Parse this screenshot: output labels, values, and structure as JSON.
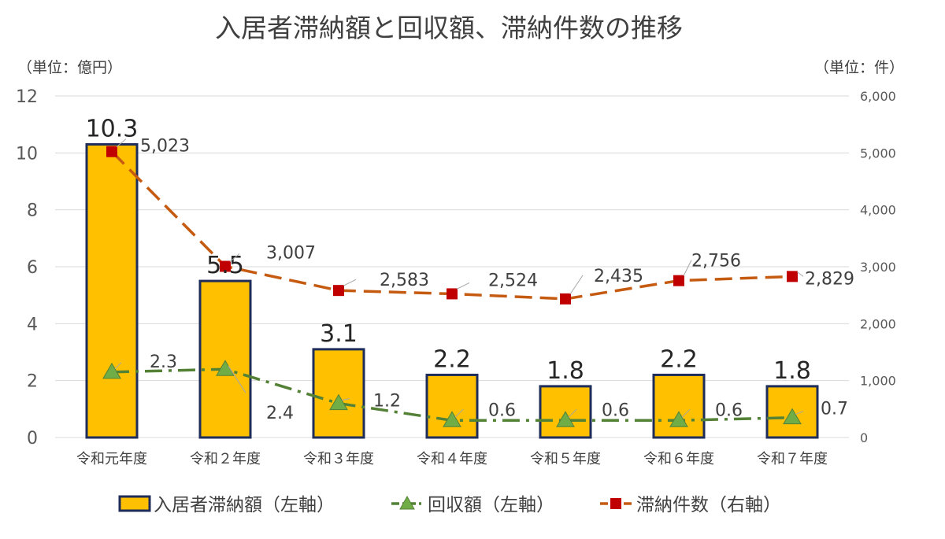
{
  "chart_data": {
    "type": "bar",
    "title": "入居者滞納額と回収額、滞納件数の推移",
    "ylabel_left": "（単位：億円）",
    "ylabel_right": "（単位：件）",
    "categories": [
      "令和元年度",
      "令和２年度",
      "令和３年度",
      "令和４年度",
      "令和５年度",
      "令和６年度",
      "令和７年度"
    ],
    "left_axis": {
      "min": 0,
      "max": 12,
      "ticks": [
        "0",
        "2",
        "4",
        "6",
        "8",
        "10",
        "12"
      ]
    },
    "right_axis": {
      "min": 0,
      "max": 6000,
      "ticks": [
        "0",
        "1,000",
        "2,000",
        "3,000",
        "4,000",
        "5,000",
        "6,000"
      ]
    },
    "grid": true,
    "legend_position": "bottom",
    "series": [
      {
        "name": "入居者滞納額（左軸）",
        "type": "bar",
        "axis": "left",
        "color": "#FFC000",
        "border_color": "#1F2D5A",
        "values": [
          10.3,
          5.5,
          3.1,
          2.2,
          1.8,
          2.2,
          1.8
        ],
        "labels": [
          "10.3",
          "5.5",
          "3.1",
          "2.2",
          "1.8",
          "2.2",
          "1.8"
        ]
      },
      {
        "name": "回収額（左軸）",
        "type": "line",
        "axis": "left",
        "color": "#538135",
        "marker": "triangle",
        "line_style": "dash-dot",
        "values": [
          2.3,
          2.4,
          1.2,
          0.6,
          0.6,
          0.6,
          0.7
        ],
        "labels": [
          "2.3",
          "2.4",
          "1.2",
          "0.6",
          "0.6",
          "0.6",
          "0.7"
        ]
      },
      {
        "name": "滞納件数（右軸）",
        "type": "line",
        "axis": "right",
        "color": "#C55A11",
        "marker_color": "#C00000",
        "marker": "square",
        "line_style": "dashed",
        "values": [
          5023,
          3007,
          2583,
          2524,
          2435,
          2756,
          2829
        ],
        "labels": [
          "5,023",
          "3,007",
          "2,583",
          "2,524",
          "2,435",
          "2,756",
          "2,829"
        ]
      }
    ]
  }
}
